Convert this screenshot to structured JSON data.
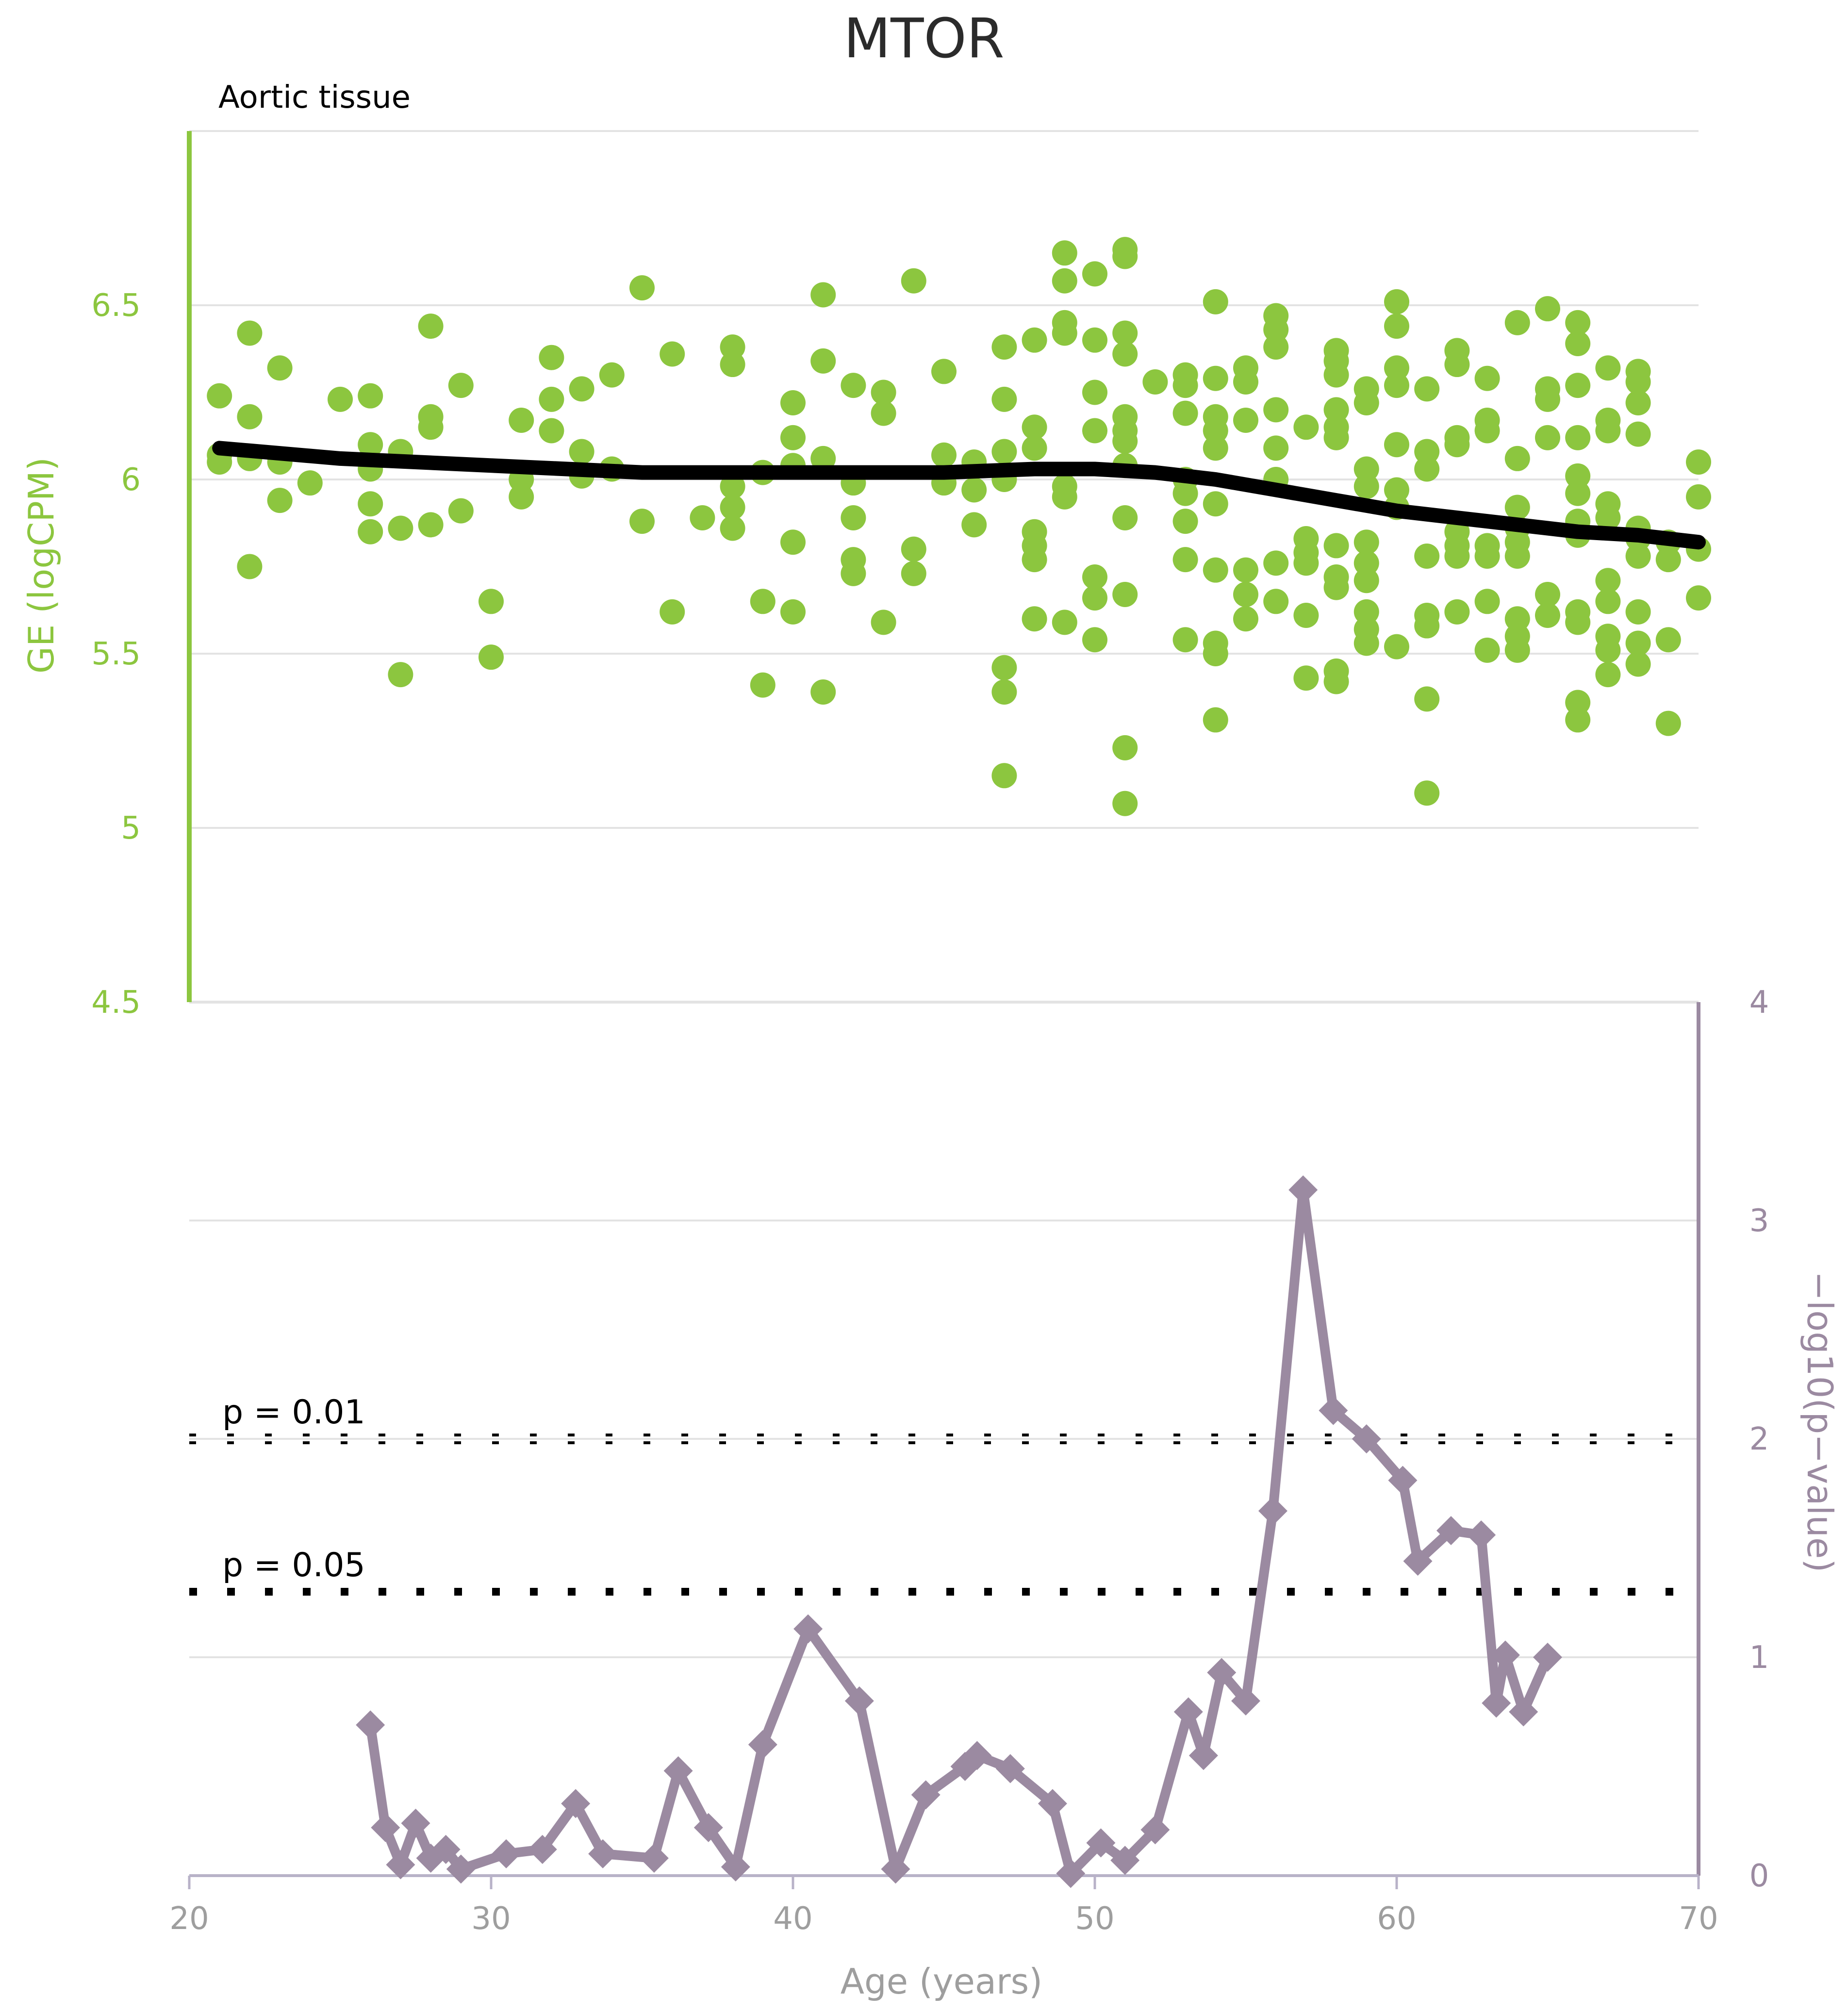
{
  "chart_data": {
    "type": "scatter",
    "title": "MTOR",
    "subtitle": "Aortic tissue",
    "xlabel": "Age (years)",
    "xlim": [
      20,
      70
    ],
    "x_ticks": [
      "20",
      "30",
      "40",
      "50",
      "60",
      "70"
    ],
    "upper_panel": {
      "ylabel": "GE (logCPM)",
      "ylim": [
        4.5,
        7.0
      ],
      "y_ticks": [
        "4.5",
        "5",
        "5.5",
        "6",
        "6.5"
      ],
      "y_tick_values": [
        4.5,
        5,
        5.5,
        6,
        6.5
      ],
      "point_color": "#8cc63f",
      "points": [
        [
          21,
          6.24
        ],
        [
          21,
          6.07
        ],
        [
          21,
          6.05
        ],
        [
          22,
          6.42
        ],
        [
          22,
          6.18
        ],
        [
          22,
          6.06
        ],
        [
          22,
          5.75
        ],
        [
          23,
          6.32
        ],
        [
          23,
          6.05
        ],
        [
          23,
          5.94
        ],
        [
          24,
          5.99
        ],
        [
          25,
          6.23
        ],
        [
          26,
          6.24
        ],
        [
          26,
          6.1
        ],
        [
          26,
          6.03
        ],
        [
          26,
          5.93
        ],
        [
          26,
          5.85
        ],
        [
          27,
          6.08
        ],
        [
          27,
          5.86
        ],
        [
          27,
          5.44
        ],
        [
          28,
          6.44
        ],
        [
          28,
          6.18
        ],
        [
          28,
          6.15
        ],
        [
          28,
          5.87
        ],
        [
          29,
          6.27
        ],
        [
          29,
          5.91
        ],
        [
          30,
          5.65
        ],
        [
          30,
          5.49
        ],
        [
          31,
          6.17
        ],
        [
          31,
          6.0
        ],
        [
          31,
          5.95
        ],
        [
          32,
          6.35
        ],
        [
          32,
          6.23
        ],
        [
          32,
          6.14
        ],
        [
          33,
          6.26
        ],
        [
          33,
          6.08
        ],
        [
          33,
          6.01
        ],
        [
          34,
          6.3
        ],
        [
          34,
          6.03
        ],
        [
          35,
          6.55
        ],
        [
          35,
          5.88
        ],
        [
          36,
          6.36
        ],
        [
          36,
          5.62
        ],
        [
          37,
          5.89
        ],
        [
          38,
          6.38
        ],
        [
          38,
          6.33
        ],
        [
          38,
          5.98
        ],
        [
          38,
          5.92
        ],
        [
          38,
          5.86
        ],
        [
          39,
          6.02
        ],
        [
          39,
          5.65
        ],
        [
          39,
          5.41
        ],
        [
          40,
          6.22
        ],
        [
          40,
          6.12
        ],
        [
          40,
          6.04
        ],
        [
          40,
          5.82
        ],
        [
          40,
          5.62
        ],
        [
          41,
          6.53
        ],
        [
          41,
          6.34
        ],
        [
          41,
          6.06
        ],
        [
          41,
          5.39
        ],
        [
          42,
          6.27
        ],
        [
          42,
          5.99
        ],
        [
          42,
          5.89
        ],
        [
          42,
          5.77
        ],
        [
          42,
          5.73
        ],
        [
          43,
          6.25
        ],
        [
          43,
          6.19
        ],
        [
          43,
          5.59
        ],
        [
          44,
          6.57
        ],
        [
          44,
          5.8
        ],
        [
          44,
          5.73
        ],
        [
          45,
          6.31
        ],
        [
          45,
          6.07
        ],
        [
          45,
          5.99
        ],
        [
          46,
          6.05
        ],
        [
          46,
          5.97
        ],
        [
          46,
          5.87
        ],
        [
          47,
          6.38
        ],
        [
          47,
          6.23
        ],
        [
          47,
          6.08
        ],
        [
          47,
          6.0
        ],
        [
          47,
          5.46
        ],
        [
          47,
          5.39
        ],
        [
          47,
          5.15
        ],
        [
          48,
          6.4
        ],
        [
          48,
          6.15
        ],
        [
          48,
          6.09
        ],
        [
          48,
          5.85
        ],
        [
          48,
          5.81
        ],
        [
          48,
          5.77
        ],
        [
          48,
          5.6
        ],
        [
          49,
          6.65
        ],
        [
          49,
          6.57
        ],
        [
          49,
          6.45
        ],
        [
          49,
          6.42
        ],
        [
          49,
          5.98
        ],
        [
          49,
          5.95
        ],
        [
          49,
          5.59
        ],
        [
          50,
          6.59
        ],
        [
          50,
          6.4
        ],
        [
          50,
          6.25
        ],
        [
          50,
          6.14
        ],
        [
          50,
          5.72
        ],
        [
          50,
          5.66
        ],
        [
          50,
          5.54
        ],
        [
          51,
          6.66
        ],
        [
          51,
          6.64
        ],
        [
          51,
          6.42
        ],
        [
          51,
          6.36
        ],
        [
          51,
          6.18
        ],
        [
          51,
          6.14
        ],
        [
          51,
          6.11
        ],
        [
          51,
          6.04
        ],
        [
          51,
          5.89
        ],
        [
          51,
          5.67
        ],
        [
          51,
          5.23
        ],
        [
          51,
          5.07
        ],
        [
          52,
          6.28
        ],
        [
          53,
          6.3
        ],
        [
          53,
          6.27
        ],
        [
          53,
          6.19
        ],
        [
          53,
          6.0
        ],
        [
          53,
          5.96
        ],
        [
          53,
          5.88
        ],
        [
          53,
          5.77
        ],
        [
          53,
          5.54
        ],
        [
          54,
          6.51
        ],
        [
          54,
          6.29
        ],
        [
          54,
          6.18
        ],
        [
          54,
          6.14
        ],
        [
          54,
          6.09
        ],
        [
          54,
          5.93
        ],
        [
          54,
          5.74
        ],
        [
          54,
          5.53
        ],
        [
          54,
          5.5
        ],
        [
          54,
          5.31
        ],
        [
          55,
          6.32
        ],
        [
          55,
          6.28
        ],
        [
          55,
          6.17
        ],
        [
          55,
          5.74
        ],
        [
          55,
          5.67
        ],
        [
          55,
          5.6
        ],
        [
          56,
          6.47
        ],
        [
          56,
          6.43
        ],
        [
          56,
          6.38
        ],
        [
          56,
          6.2
        ],
        [
          56,
          6.09
        ],
        [
          56,
          6.0
        ],
        [
          56,
          5.76
        ],
        [
          56,
          5.65
        ],
        [
          57,
          6.15
        ],
        [
          57,
          5.83
        ],
        [
          57,
          5.79
        ],
        [
          57,
          5.76
        ],
        [
          57,
          5.61
        ],
        [
          57,
          5.43
        ],
        [
          58,
          6.37
        ],
        [
          58,
          6.34
        ],
        [
          58,
          6.3
        ],
        [
          58,
          6.2
        ],
        [
          58,
          6.15
        ],
        [
          58,
          6.12
        ],
        [
          58,
          5.81
        ],
        [
          58,
          5.72
        ],
        [
          58,
          5.69
        ],
        [
          58,
          5.45
        ],
        [
          58,
          5.42
        ],
        [
          59,
          6.26
        ],
        [
          59,
          6.22
        ],
        [
          59,
          6.03
        ],
        [
          59,
          5.98
        ],
        [
          59,
          5.82
        ],
        [
          59,
          5.76
        ],
        [
          59,
          5.71
        ],
        [
          59,
          5.62
        ],
        [
          59,
          5.57
        ],
        [
          59,
          5.53
        ],
        [
          60,
          6.51
        ],
        [
          60,
          6.44
        ],
        [
          60,
          6.32
        ],
        [
          60,
          6.27
        ],
        [
          60,
          6.1
        ],
        [
          60,
          5.97
        ],
        [
          60,
          5.92
        ],
        [
          60,
          5.52
        ],
        [
          61,
          6.26
        ],
        [
          61,
          6.08
        ],
        [
          61,
          6.03
        ],
        [
          61,
          5.78
        ],
        [
          61,
          5.61
        ],
        [
          61,
          5.58
        ],
        [
          61,
          5.37
        ],
        [
          61,
          5.1
        ],
        [
          62,
          6.37
        ],
        [
          62,
          6.33
        ],
        [
          62,
          6.12
        ],
        [
          62,
          6.1
        ],
        [
          62,
          5.85
        ],
        [
          62,
          5.81
        ],
        [
          62,
          5.78
        ],
        [
          62,
          5.62
        ],
        [
          63,
          6.29
        ],
        [
          63,
          6.17
        ],
        [
          63,
          6.14
        ],
        [
          63,
          5.81
        ],
        [
          63,
          5.78
        ],
        [
          63,
          5.65
        ],
        [
          63,
          5.51
        ],
        [
          64,
          6.45
        ],
        [
          64,
          6.06
        ],
        [
          64,
          5.92
        ],
        [
          64,
          5.86
        ],
        [
          64,
          5.82
        ],
        [
          64,
          5.78
        ],
        [
          64,
          5.6
        ],
        [
          64,
          5.55
        ],
        [
          64,
          5.51
        ],
        [
          65,
          6.49
        ],
        [
          65,
          6.26
        ],
        [
          65,
          6.23
        ],
        [
          65,
          6.12
        ],
        [
          65,
          5.67
        ],
        [
          65,
          5.61
        ],
        [
          66,
          6.45
        ],
        [
          66,
          6.39
        ],
        [
          66,
          6.27
        ],
        [
          66,
          6.12
        ],
        [
          66,
          6.01
        ],
        [
          66,
          5.96
        ],
        [
          66,
          5.88
        ],
        [
          66,
          5.84
        ],
        [
          66,
          5.62
        ],
        [
          66,
          5.59
        ],
        [
          66,
          5.36
        ],
        [
          66,
          5.31
        ],
        [
          67,
          6.32
        ],
        [
          67,
          6.17
        ],
        [
          67,
          6.14
        ],
        [
          67,
          5.93
        ],
        [
          67,
          5.89
        ],
        [
          67,
          5.71
        ],
        [
          67,
          5.65
        ],
        [
          67,
          5.55
        ],
        [
          67,
          5.51
        ],
        [
          67,
          5.44
        ],
        [
          68,
          6.31
        ],
        [
          68,
          6.28
        ],
        [
          68,
          6.22
        ],
        [
          68,
          6.13
        ],
        [
          68,
          5.86
        ],
        [
          68,
          5.83
        ],
        [
          68,
          5.78
        ],
        [
          68,
          5.62
        ],
        [
          68,
          5.53
        ],
        [
          68,
          5.47
        ],
        [
          69,
          5.82
        ],
        [
          69,
          5.77
        ],
        [
          69,
          5.54
        ],
        [
          69,
          5.3
        ],
        [
          70,
          6.05
        ],
        [
          70,
          5.95
        ],
        [
          70,
          5.8
        ],
        [
          70,
          5.66
        ]
      ],
      "trend_color": "#000000",
      "trend": [
        [
          21,
          6.09
        ],
        [
          25,
          6.06
        ],
        [
          30,
          6.04
        ],
        [
          35,
          6.02
        ],
        [
          40,
          6.02
        ],
        [
          45,
          6.02
        ],
        [
          48,
          6.03
        ],
        [
          50,
          6.03
        ],
        [
          52,
          6.02
        ],
        [
          54,
          6.0
        ],
        [
          56,
          5.97
        ],
        [
          58,
          5.94
        ],
        [
          60,
          5.91
        ],
        [
          62,
          5.89
        ],
        [
          64,
          5.87
        ],
        [
          66,
          5.85
        ],
        [
          68,
          5.84
        ],
        [
          70,
          5.82
        ]
      ]
    },
    "lower_panel": {
      "ylabel": "−log10(p−value)",
      "ylim": [
        0,
        4
      ],
      "y_ticks": [
        "0",
        "1",
        "2",
        "3",
        "4"
      ],
      "y_tick_values": [
        0,
        1,
        2,
        3,
        4
      ],
      "line_color": "#9b8aa1",
      "series": [
        {
          "name": "-log10(p-value)",
          "x": [
            26,
            26.5,
            27,
            27.5,
            28,
            28.5,
            29,
            30.5,
            31.7,
            32.8,
            33.7,
            35.4,
            36.2,
            37.2,
            38.1,
            39,
            40.5,
            42.2,
            43.4,
            44.4,
            45.7,
            46.1,
            47.2,
            48.6,
            49.2,
            50.2,
            51,
            52,
            53.1,
            53.6,
            54.2,
            55,
            55.9,
            56.9,
            57.9,
            59,
            60.2,
            60.7,
            61.8,
            62.8,
            63.3,
            63.6,
            64.2,
            65
          ],
          "values": [
            0.69,
            0.22,
            0.05,
            0.24,
            0.08,
            0.12,
            0.03,
            0.1,
            0.12,
            0.33,
            0.1,
            0.08,
            0.48,
            0.22,
            0.04,
            0.6,
            1.13,
            0.8,
            0.03,
            0.37,
            0.5,
            0.55,
            0.49,
            0.33,
            0.01,
            0.15,
            0.07,
            0.21,
            0.75,
            0.55,
            0.93,
            0.8,
            1.67,
            3.14,
            2.13,
            2.0,
            1.81,
            1.44,
            1.58,
            1.56,
            0.79,
            1.01,
            0.75,
            1.0
          ]
        }
      ],
      "reference_lines": [
        {
          "label": "p = 0.01",
          "value": 2
        },
        {
          "label": "p = 0.05",
          "value": 1.3
        }
      ]
    }
  },
  "colors": {
    "green": "#8cc63f",
    "purple": "#9b8aa1",
    "grid": "#e3e3e3",
    "text": "#3a3a3a"
  }
}
